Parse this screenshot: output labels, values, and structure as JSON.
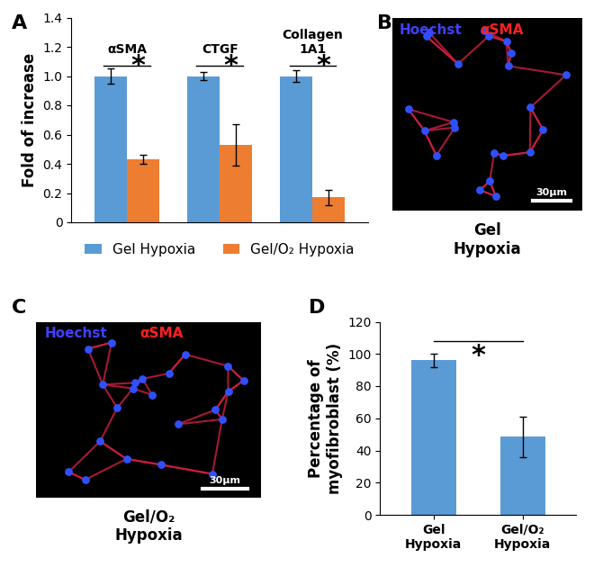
{
  "chart_data": [
    {
      "panel": "A",
      "type": "bar",
      "categories": [
        "αSMA",
        "CTGF",
        "Collagen\n1A1"
      ],
      "significance": [
        "*",
        "*",
        "*"
      ],
      "y_label": "Fold of increase",
      "series": [
        {
          "name": "Gel Hypoxia",
          "color": "#5b9bd5",
          "values": [
            1.0,
            1.0,
            1.0
          ],
          "errors": [
            0.05,
            0.03,
            0.04
          ]
        },
        {
          "name": "Gel/O₂ Hypoxia",
          "color": "#ed7d31",
          "values": [
            0.43,
            0.53,
            0.17
          ],
          "errors": [
            0.03,
            0.14,
            0.05
          ]
        }
      ],
      "ylim": [
        0,
        1.4
      ],
      "yticks": [
        0,
        0.2,
        0.4,
        0.6,
        0.8,
        1.0,
        1.2,
        1.4
      ],
      "tick_labels": "y",
      "legend": "bottom"
    },
    {
      "panel": "D",
      "type": "bar",
      "categories": [
        "Gel\nHypoxia",
        "Gel/O₂\nHypoxia"
      ],
      "values": [
        96,
        48.5
      ],
      "errors": [
        4,
        12.5
      ],
      "color": "#5b9bd5",
      "significance": "*",
      "y_label": "Percentage of\nmyofibroblast (%)",
      "ylim": [
        0,
        120
      ],
      "yticks": [
        0,
        20,
        40,
        60,
        80,
        100,
        120
      ]
    }
  ],
  "images": [
    {
      "panel": "B",
      "labels": [
        {
          "text": "Hoechst",
          "color": "#4040ff"
        },
        {
          "text": "αSMA",
          "color": "#ff2020"
        }
      ],
      "scale_bar": "30μm",
      "caption": "Gel\nHypoxia"
    },
    {
      "panel": "C",
      "labels": [
        {
          "text": "Hoechst",
          "color": "#4040ff"
        },
        {
          "text": "αSMA",
          "color": "#ff2020"
        }
      ],
      "scale_bar": "30μm",
      "caption": "Gel/O₂\nHypoxia"
    }
  ]
}
